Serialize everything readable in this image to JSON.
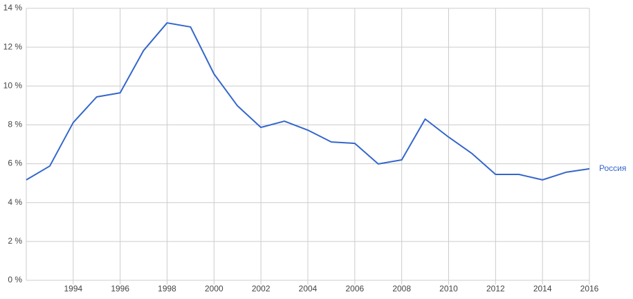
{
  "chart_data": {
    "type": "line",
    "x": [
      1992,
      1993,
      1994,
      1995,
      1996,
      1997,
      1998,
      1999,
      2000,
      2001,
      2002,
      2003,
      2004,
      2005,
      2006,
      2007,
      2008,
      2009,
      2010,
      2011,
      2012,
      2013,
      2014,
      2015,
      2016
    ],
    "series": [
      {
        "name": "Россия",
        "color": "#3366cc",
        "values": [
          5.17,
          5.88,
          8.12,
          9.44,
          9.65,
          11.83,
          13.25,
          13.04,
          10.62,
          8.98,
          7.87,
          8.19,
          7.73,
          7.12,
          7.05,
          5.99,
          6.2,
          8.3,
          7.37,
          6.52,
          5.45,
          5.45,
          5.17,
          5.56,
          5.74
        ]
      }
    ],
    "xlim": [
      1992,
      2016
    ],
    "xticks": [
      1994,
      1996,
      1998,
      2000,
      2002,
      2004,
      2006,
      2008,
      2010,
      2012,
      2014,
      2016
    ],
    "ylim": [
      0,
      14
    ],
    "yticks": [
      {
        "value": 0,
        "label": "0 %"
      },
      {
        "value": 2,
        "label": "2 %"
      },
      {
        "value": 4,
        "label": "4 %"
      },
      {
        "value": 6,
        "label": "6 %"
      },
      {
        "value": 8,
        "label": "8 %"
      },
      {
        "value": 10,
        "label": "10 %"
      },
      {
        "value": 12,
        "label": "12 %"
      },
      {
        "value": 14,
        "label": "14 %"
      }
    ],
    "grid": true
  }
}
